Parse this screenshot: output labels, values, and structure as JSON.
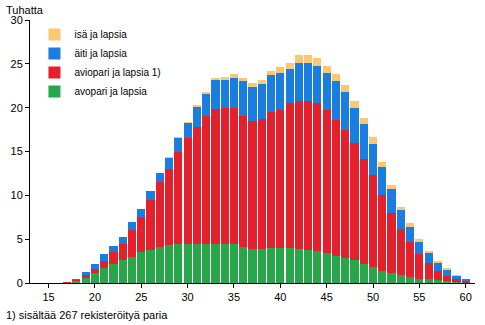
{
  "chart_data": {
    "type": "bar",
    "stacked": true,
    "ylabel": "Tuhatta",
    "annotations": [
      "1) sisältää 267 rekisteröityä paria"
    ],
    "legend": "top-left",
    "grid": false,
    "x": [
      17,
      18,
      19,
      20,
      21,
      22,
      23,
      24,
      25,
      26,
      27,
      28,
      29,
      30,
      31,
      32,
      33,
      34,
      35,
      36,
      37,
      38,
      39,
      40,
      41,
      42,
      43,
      44,
      45,
      46,
      47,
      48,
      49,
      50,
      51,
      52,
      53,
      54,
      55,
      56,
      57,
      58,
      59,
      60
    ],
    "xlim": [
      13,
      61
    ],
    "xticks": [
      15,
      20,
      25,
      30,
      35,
      40,
      45,
      50,
      55,
      60
    ],
    "ylim": [
      0,
      30
    ],
    "yticks": [
      0,
      5,
      10,
      15,
      20,
      25,
      30
    ],
    "series": [
      {
        "name": "isä ja lapsia",
        "color": "#fbc777",
        "values": [
          0,
          0,
          0,
          0,
          0,
          0,
          0,
          0,
          0.05,
          0.05,
          0.1,
          0.1,
          0.1,
          0.1,
          0.2,
          0.2,
          0.3,
          0.3,
          0.4,
          0.4,
          0.4,
          0.5,
          0.5,
          0.6,
          0.7,
          0.9,
          0.9,
          0.9,
          0.9,
          0.8,
          0.8,
          0.8,
          0.7,
          0.7,
          0.6,
          0.5,
          0.4,
          0.4,
          0.3,
          0.3,
          0.2,
          0.2,
          0.1,
          0.1
        ]
      },
      {
        "name": "äiti ja lapsia",
        "color": "#1a7de0",
        "values": [
          0.05,
          0.2,
          0.3,
          0.6,
          0.8,
          0.7,
          0.8,
          1.0,
          0.9,
          1.0,
          1.0,
          1.3,
          1.5,
          1.8,
          2.3,
          2.6,
          3.2,
          3.2,
          3.4,
          4.0,
          3.9,
          4.0,
          4.2,
          4.3,
          3.9,
          4.3,
          4.3,
          4.3,
          4.2,
          4.4,
          4.3,
          4.0,
          3.9,
          3.6,
          3.2,
          2.7,
          2.1,
          1.7,
          1.4,
          1.1,
          0.9,
          0.7,
          0.4,
          0.2
        ]
      },
      {
        "name": "aviopari ja lapsia 1)",
        "color": "#e3202b",
        "values": [
          0.03,
          0.1,
          0.3,
          0.5,
          0.8,
          1.3,
          1.9,
          3.0,
          4.0,
          5.7,
          7.4,
          8.7,
          10.6,
          12.1,
          13.4,
          14.5,
          15.4,
          15.6,
          15.6,
          14.9,
          14.6,
          14.8,
          15.5,
          15.7,
          16.5,
          16.9,
          17.0,
          16.9,
          16.3,
          15.5,
          14.6,
          13.4,
          12.0,
          10.5,
          8.6,
          6.9,
          5.3,
          4.0,
          2.8,
          1.9,
          1.1,
          0.6,
          0.3,
          0.15
        ]
      },
      {
        "name": "avopari ja lapsia",
        "color": "#27a64a",
        "values": [
          0.05,
          0.2,
          0.6,
          1.1,
          1.7,
          2.2,
          2.6,
          3.0,
          3.5,
          3.8,
          4.1,
          4.3,
          4.4,
          4.4,
          4.4,
          4.5,
          4.5,
          4.4,
          4.4,
          4.1,
          3.9,
          3.9,
          4.0,
          4.0,
          4.0,
          3.9,
          3.8,
          3.6,
          3.4,
          3.1,
          2.9,
          2.6,
          2.2,
          1.8,
          1.4,
          1.1,
          0.9,
          0.7,
          0.5,
          0.4,
          0.3,
          0.2,
          0.1,
          0.05
        ]
      }
    ]
  }
}
